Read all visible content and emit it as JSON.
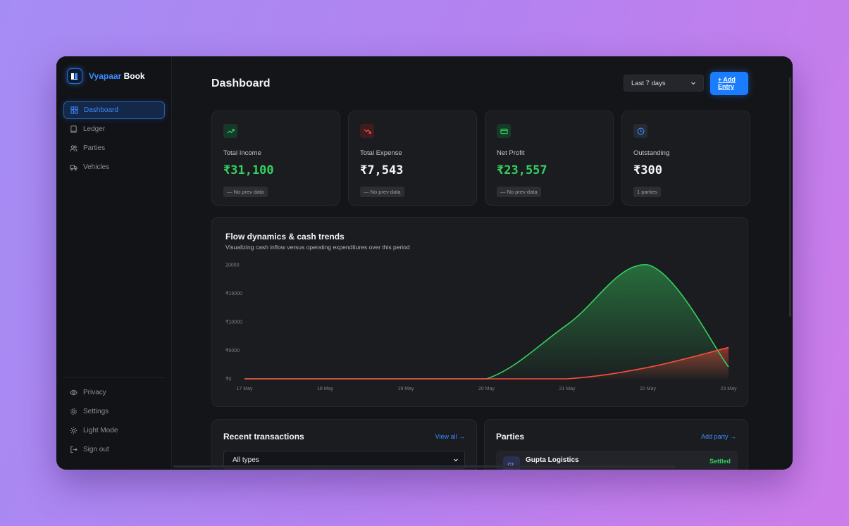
{
  "brand": {
    "name_part1": "Vyapaar",
    "name_part2": "Book"
  },
  "sidebar": {
    "items": [
      {
        "label": "Dashboard",
        "icon": "grid-icon",
        "active": true
      },
      {
        "label": "Ledger",
        "icon": "book-icon"
      },
      {
        "label": "Parties",
        "icon": "users-icon"
      },
      {
        "label": "Vehicles",
        "icon": "truck-icon"
      }
    ],
    "bottom_items": [
      {
        "label": "Privacy",
        "icon": "eye-icon"
      },
      {
        "label": "Settings",
        "icon": "gear-icon"
      },
      {
        "label": "Light Mode",
        "icon": "sun-icon"
      },
      {
        "label": "Sign out",
        "icon": "logout-icon"
      }
    ]
  },
  "header": {
    "title": "Dashboard",
    "range_select": "Last 7 days",
    "add_button": "+ Add Entry",
    "add_button_line1": "+ Add",
    "add_button_line2": "Entry"
  },
  "cards": [
    {
      "label": "Total Income",
      "value": "₹31,100",
      "badge": "— No prev data",
      "icon": "trend-up-icon",
      "tone": "green"
    },
    {
      "label": "Total Expense",
      "value": "₹7,543",
      "badge": "— No prev data",
      "icon": "trend-down-icon",
      "tone": "red"
    },
    {
      "label": "Net Profit",
      "value": "₹23,557",
      "badge": "— No prev data",
      "icon": "wallet-icon",
      "tone": "green"
    },
    {
      "label": "Outstanding",
      "value": "₹300",
      "badge": "1 parties",
      "icon": "clock-icon",
      "tone": "blue"
    }
  ],
  "chart": {
    "title": "Flow dynamics & cash trends",
    "subtitle": "Visualizing cash inflow versus operating expenditures over this period"
  },
  "chart_data": {
    "type": "area",
    "title": "Flow dynamics & cash trends",
    "subtitle": "Visualizing cash inflow versus operating expenditures over this period",
    "categories": [
      "17 May",
      "18 May",
      "19 May",
      "20 May",
      "21 May",
      "22 May",
      "23 May"
    ],
    "y_ticks": [
      "₹0",
      "₹5000",
      "₹10000",
      "₹15000",
      "20000"
    ],
    "ylim": [
      0,
      20000
    ],
    "series": [
      {
        "name": "",
        "color": "#35d05f",
        "values": [
          0,
          0,
          0,
          0,
          9500,
          20000,
          2100
        ]
      },
      {
        "name": "",
        "color": "#ff4d3d",
        "values": [
          0,
          0,
          0,
          0,
          0,
          2000,
          5500
        ]
      }
    ],
    "grid": false,
    "legend": "none"
  },
  "recent": {
    "title": "Recent transactions",
    "link": "View all →",
    "filter": "All types"
  },
  "parties": {
    "title": "Parties",
    "link": "Add party →",
    "rows": [
      {
        "initials": "GL",
        "name": "Gupta Logistics",
        "status": "Settled"
      }
    ]
  },
  "colors": {
    "accent": "#1a7cff",
    "positive": "#35d05f",
    "negative": "#ff4d3d",
    "background": "#141518"
  }
}
